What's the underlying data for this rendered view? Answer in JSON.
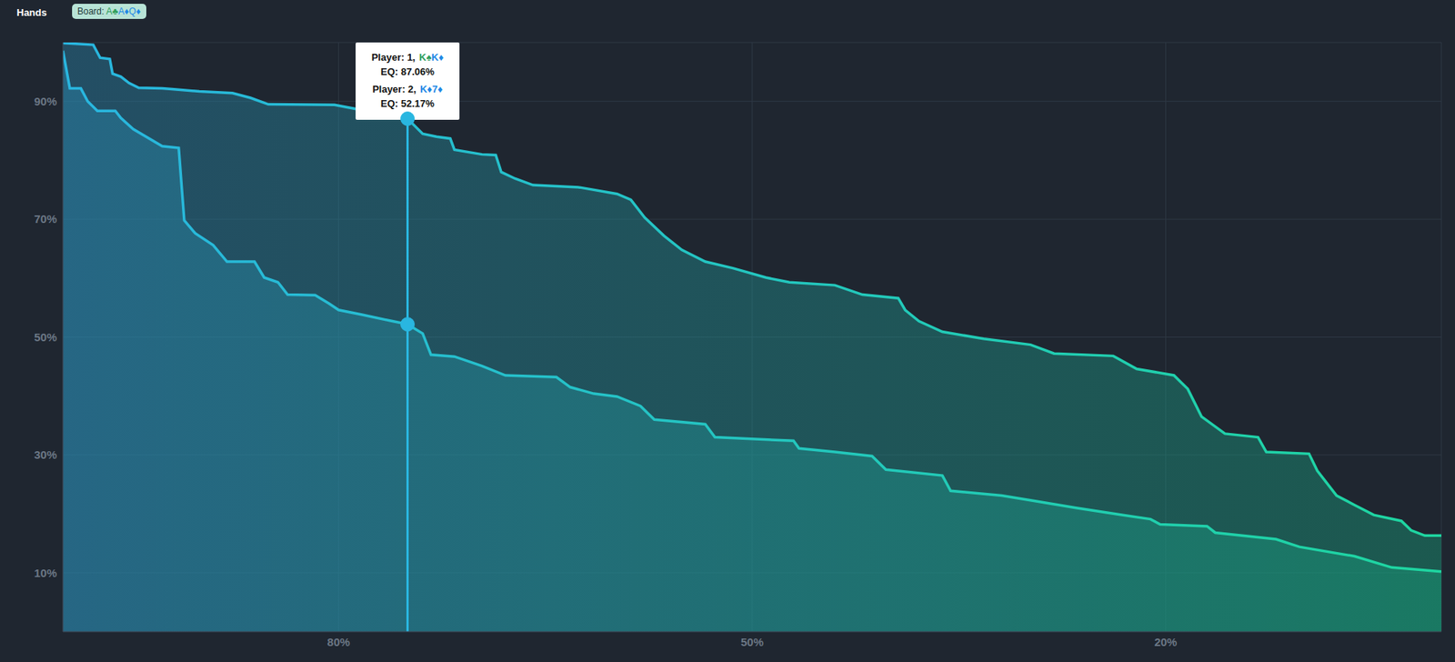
{
  "header": {
    "title": "Hands",
    "board": {
      "label": "Board:",
      "cards": [
        {
          "text": "A♣",
          "color": "#2e9e5b"
        },
        {
          "text": "A♦",
          "color": "#1e88e5"
        },
        {
          "text": "Q♦",
          "color": "#1e88e5"
        }
      ]
    }
  },
  "chart_data": {
    "type": "area",
    "series": [
      {
        "color": "#29b6e0",
        "x": [
          100,
          97.8,
          97.3,
          96.6,
          96.4,
          95.8,
          95.2,
          94.5,
          92.8,
          92.1,
          90.1,
          87.7,
          86.4,
          85.1,
          80.3,
          75,
          73.9,
          72.9,
          71.9,
          71.6,
          69.6,
          68.6,
          68.2,
          67.2,
          65.9,
          62.5,
          59.8,
          58.8,
          57.8,
          56.4,
          55.1,
          53.4,
          51.4,
          49.0,
          47.3,
          44.0,
          42.0,
          39.4,
          38.9,
          37.9,
          36.2,
          33.2,
          29.8,
          28.1,
          23.8,
          22.1,
          19.4,
          18.4,
          17.4,
          15.7,
          13.3,
          12.7,
          9.6,
          9.0,
          7.6,
          6.3,
          4.9,
          2.9,
          2.2,
          1.2,
          0
        ],
        "values": [
          99.9,
          99.6,
          97.4,
          97.2,
          94.7,
          94.2,
          93.1,
          92.3,
          92.2,
          92.1,
          91.7,
          91.4,
          90.6,
          89.5,
          89.4,
          87.06,
          84.5,
          84.0,
          83.7,
          81.8,
          81.0,
          80.9,
          78.0,
          76.9,
          75.8,
          75.4,
          74.3,
          73.3,
          70.3,
          67.2,
          64.8,
          62.8,
          61.7,
          60.1,
          59.3,
          58.8,
          57.2,
          56.6,
          54.6,
          52.7,
          50.9,
          49.7,
          48.7,
          47.2,
          46.8,
          44.6,
          43.5,
          41.2,
          36.5,
          33.6,
          33.0,
          30.5,
          30.2,
          27.3,
          23.1,
          21.5,
          19.8,
          18.8,
          17.2,
          16.3,
          16.3
        ]
      },
      {
        "color": "#29b6e0",
        "x": [
          100,
          99.5,
          98.7,
          98.2,
          97.5,
          96.2,
          95.8,
          94.9,
          92.8,
          91.6,
          91.2,
          90.4,
          89.1,
          88.1,
          86.1,
          85.4,
          84.4,
          83.7,
          81.7,
          80.7,
          80.0,
          78.3,
          76.3,
          75,
          73.9,
          73.3,
          71.6,
          69.6,
          67.9,
          64.2,
          63.2,
          61.5,
          59.8,
          58.1,
          57.1,
          53.4,
          52.7,
          47.0,
          46.6,
          44.0,
          41.3,
          40.3,
          36.2,
          35.6,
          31.9,
          29.8,
          26.5,
          23.1,
          21.1,
          20.4,
          17.0,
          16.4,
          12.0,
          10.3,
          6.3,
          3.6,
          0
        ],
        "values": [
          98.6,
          92.2,
          92.2,
          90.0,
          88.4,
          88.4,
          87.2,
          85.3,
          82.4,
          82.1,
          69.8,
          67.6,
          65.6,
          62.8,
          62.8,
          60.1,
          59.3,
          57.2,
          57.1,
          55.7,
          54.6,
          53.8,
          52.8,
          52.17,
          50.6,
          47.0,
          46.7,
          45.1,
          43.5,
          43.2,
          41.5,
          40.4,
          39.9,
          38.3,
          36.0,
          35.2,
          33.0,
          32.4,
          31.1,
          30.5,
          29.8,
          27.5,
          26.5,
          23.9,
          23.1,
          22.3,
          21.0,
          19.8,
          19.1,
          18.2,
          17.9,
          16.8,
          15.7,
          14.4,
          12.8,
          10.9,
          10.2
        ]
      }
    ],
    "xlim": [
      100,
      0
    ],
    "xticks": [
      {
        "value": 80,
        "label": "80%"
      },
      {
        "value": 50,
        "label": "50%"
      },
      {
        "value": 20,
        "label": "20%"
      }
    ],
    "ylim": [
      0,
      100
    ],
    "yticks": [
      {
        "value": 10,
        "label": "10%"
      },
      {
        "value": 30,
        "label": "30%"
      },
      {
        "value": 50,
        "label": "50%"
      },
      {
        "value": 70,
        "label": "70%"
      },
      {
        "value": 90,
        "label": "90%"
      }
    ],
    "grid": true,
    "annotations": [
      {
        "x": 75,
        "entries": [
          {
            "label": "Player: 1,",
            "cards": [
              {
                "text": "K♠",
                "color": "#2e9e5b"
              },
              {
                "text": "K♦",
                "color": "#1e88e5"
              }
            ],
            "value": 87.06,
            "value_label": "EQ: 87.06%"
          },
          {
            "label": "Player: 2,",
            "cards": [
              {
                "text": "K♦",
                "color": "#1e88e5"
              },
              {
                "text": "7♦",
                "color": "#1e88e5"
              }
            ],
            "value": 52.17,
            "value_label": "EQ: 52.17%"
          }
        ]
      }
    ]
  }
}
